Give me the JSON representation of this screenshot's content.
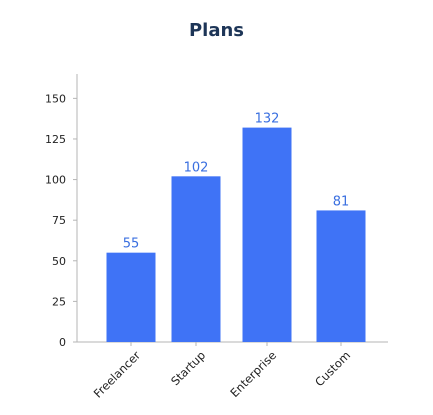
{
  "chart_data": {
    "type": "bar",
    "title": "Plans",
    "categories": [
      "Freelancer",
      "Startup",
      "Enterprise",
      "Custom"
    ],
    "values": [
      55,
      102,
      132,
      81
    ],
    "ylim": [
      0,
      165
    ],
    "yticks": [
      0,
      25,
      50,
      75,
      100,
      125,
      150
    ],
    "bar_color": "#3f73f6",
    "label_color": "#3a6fe0",
    "grid": false,
    "legend": "none"
  }
}
